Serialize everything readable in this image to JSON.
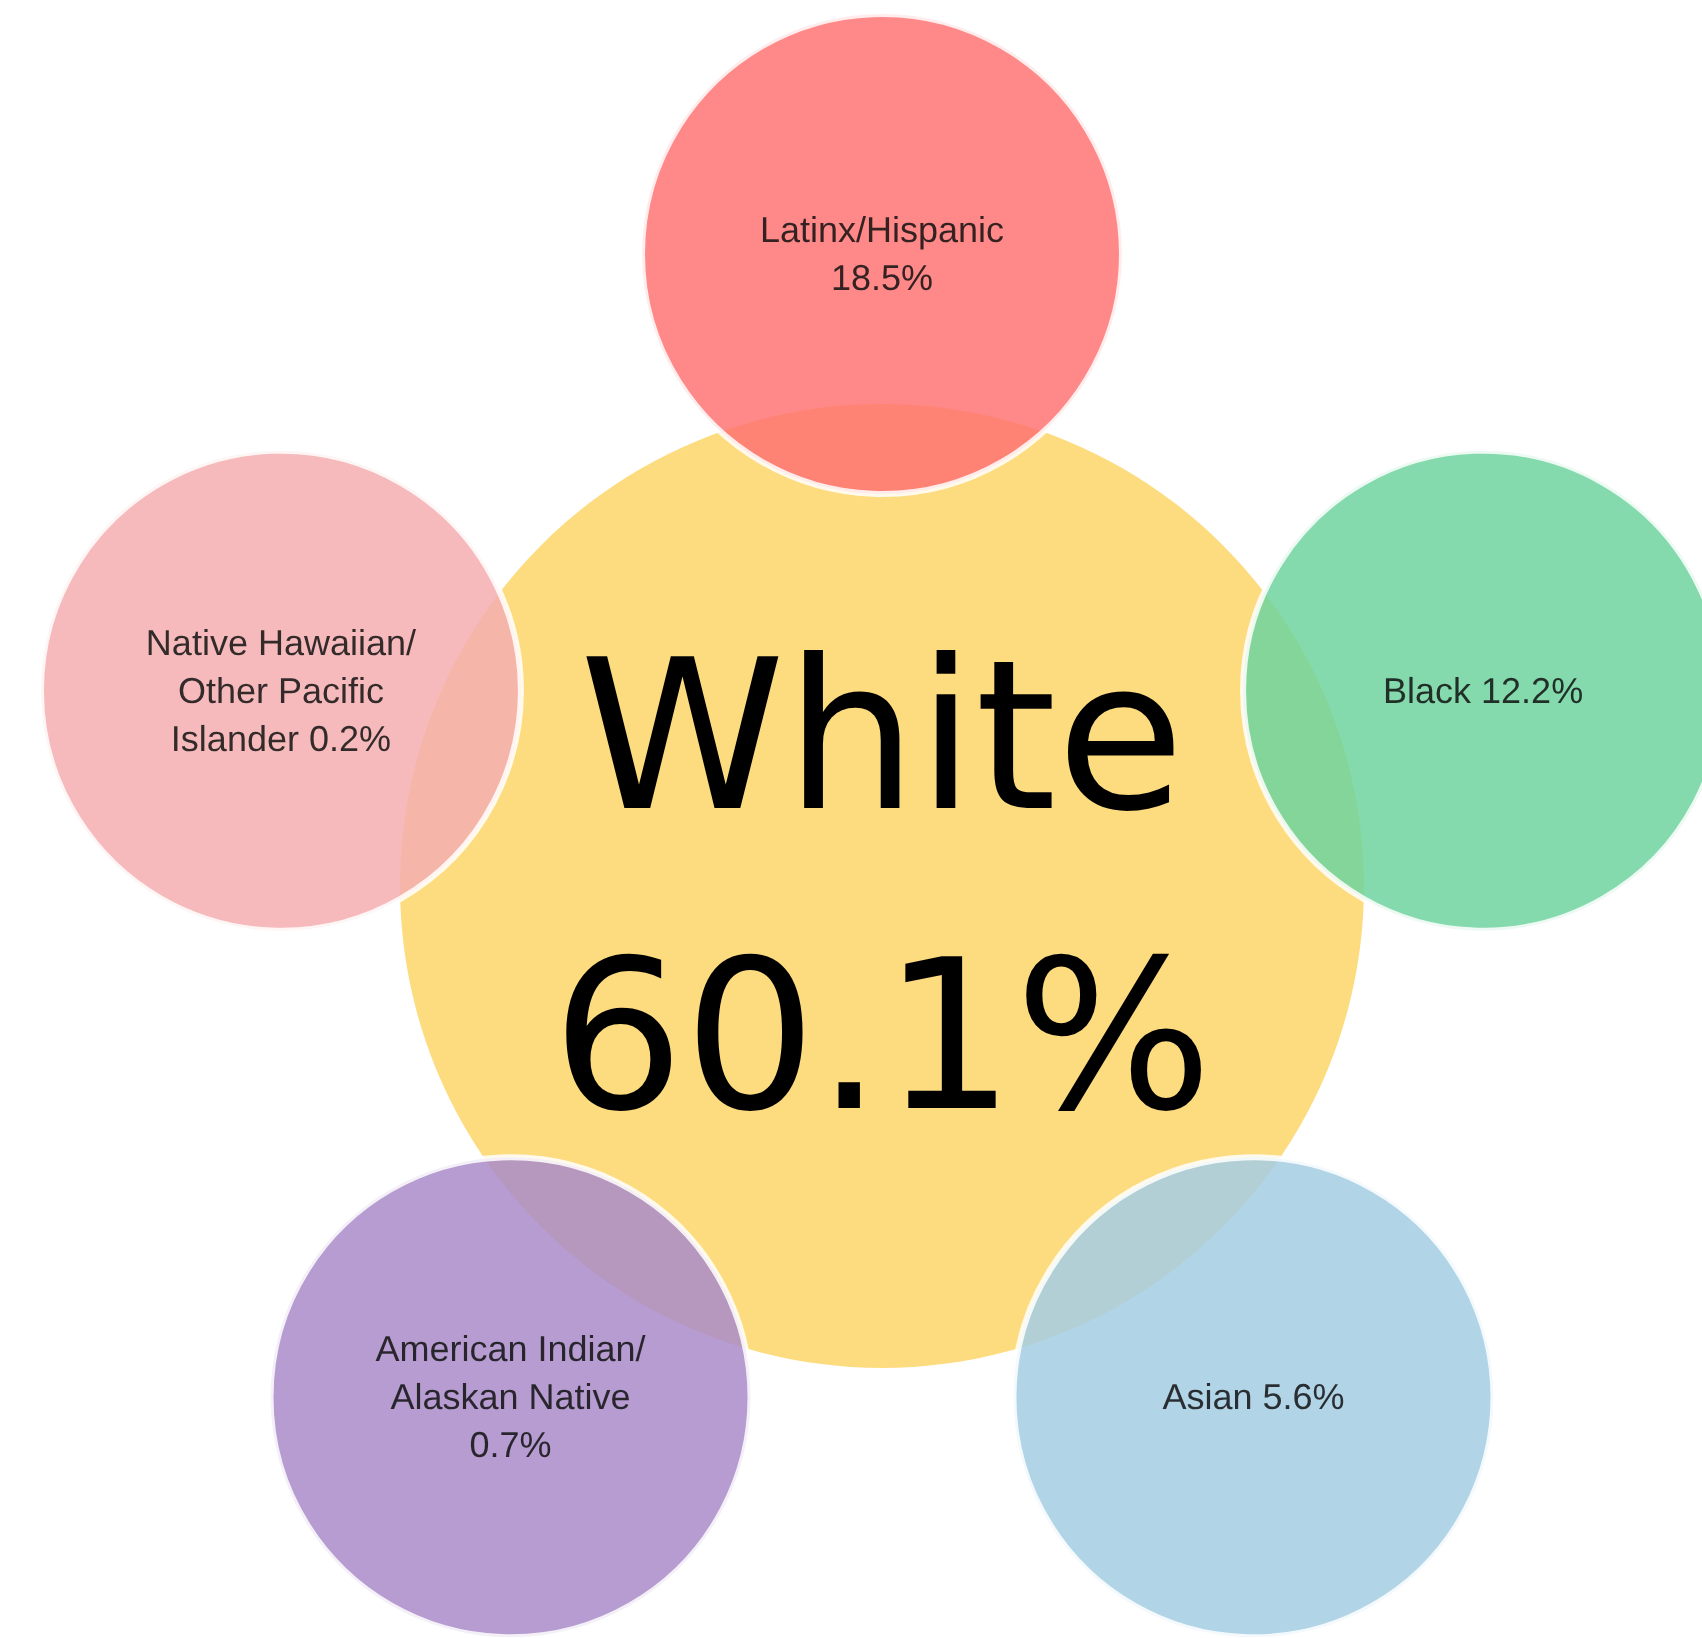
{
  "chart_data": {
    "type": "other",
    "categories": [
      "White",
      "Latinx/Hispanic",
      "Black",
      "Asian",
      "American Indian/ Alaskan Native",
      "Native Hawaiian/ Other Pacific Islander"
    ],
    "values": [
      60.1,
      18.5,
      12.2,
      5.6,
      0.7,
      0.2
    ],
    "value_labels": [
      "60.1%",
      "18.5%",
      "12.2%",
      "5.6%",
      "0.7%",
      "0.2%"
    ],
    "colors": [
      "#fddc80",
      "#ff7373",
      "#6fd49d",
      "#a3cde3",
      "#a98bc9",
      "#f5aeb0"
    ]
  }
}
